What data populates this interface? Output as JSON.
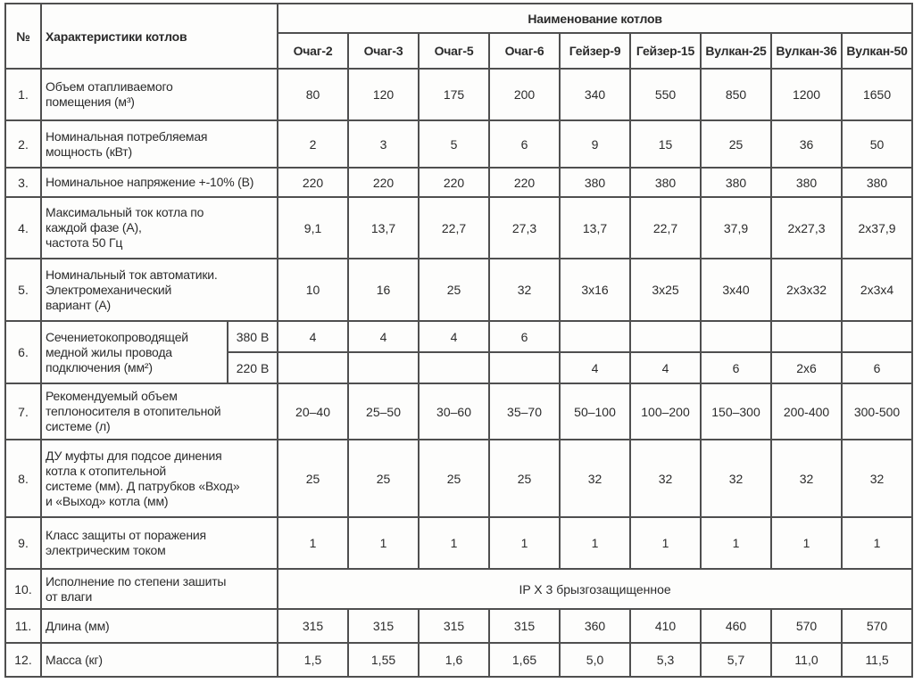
{
  "table": {
    "number_header": "№",
    "characteristics_header": "Характеристики котлов",
    "group_header": "Наименование котлов",
    "boilers": [
      "Очаг-2",
      "Очаг-3",
      "Очаг-5",
      "Очаг-6",
      "Гейзер-9",
      "Гейзер-15",
      "Вулкан-25",
      "Вулкан-36",
      "Вулкан-50"
    ],
    "rows": [
      {
        "num": "1.",
        "label": "Объем отапливаемого\nпомещения (м³)",
        "values": [
          "80",
          "120",
          "175",
          "200",
          "340",
          "550",
          "850",
          "1200",
          "1650"
        ]
      },
      {
        "num": "2.",
        "label": "Номинальная потребляемая\nмощность (кВт)",
        "values": [
          "2",
          "3",
          "5",
          "6",
          "9",
          "15",
          "25",
          "36",
          "50"
        ]
      },
      {
        "num": "3.",
        "label": "Номинальное напряжение +-10% (В)",
        "values": [
          "220",
          "220",
          "220",
          "220",
          "380",
          "380",
          "380",
          "380",
          "380"
        ]
      },
      {
        "num": "4.",
        "label": "Максимальный ток котла по\nкаждой фазе (А),\nчастота 50 Гц",
        "values": [
          "9,1",
          "13,7",
          "22,7",
          "27,3",
          "13,7",
          "22,7",
          "37,9",
          "2x27,3",
          "2x37,9"
        ]
      },
      {
        "num": "5.",
        "label": "Номинальный ток автоматики.\nЭлектромеханический\nвариант (А)",
        "values": [
          "10",
          "16",
          "25",
          "32",
          "3x16",
          "3x25",
          "3x40",
          "2x3x32",
          "2x3x4"
        ]
      },
      {
        "num": "6.",
        "label": "Сечениетокопроводящей\nмедной жилы провода\nподключения (мм²)",
        "split": [
          {
            "sublabel": "380 В",
            "values": [
              "4",
              "4",
              "4",
              "6",
              "",
              "",
              "",
              "",
              ""
            ]
          },
          {
            "sublabel": "220 В",
            "values": [
              "",
              "",
              "",
              "",
              "4",
              "4",
              "6",
              "2x6",
              "6"
            ]
          }
        ]
      },
      {
        "num": "7.",
        "label": "Рекомендуемый объем\nтеплоносителя в отопительной\nсистеме (л)",
        "values": [
          "20–40",
          "25–50",
          "30–60",
          "35–70",
          "50–100",
          "100–200",
          "150–300",
          "200-400",
          "300-500"
        ]
      },
      {
        "num": "8.",
        "label": "ДУ муфты для подсое динения\nкотла к отопительной\nсистеме (мм). Д патрубков «Вход»\nи «Выход» котла (мм)",
        "values": [
          "25",
          "25",
          "25",
          "25",
          "32",
          "32",
          "32",
          "32",
          "32"
        ]
      },
      {
        "num": "9.",
        "label": "Класс защиты от поражения\nэлектрическим током",
        "values": [
          "1",
          "1",
          "1",
          "1",
          "1",
          "1",
          "1",
          "1",
          "1"
        ]
      },
      {
        "num": "10.",
        "label": "Исполнение по степени зашиты\nот влаги",
        "merged": "IP X 3 брызгозащищенное"
      },
      {
        "num": "11.",
        "label": "Длина (мм)",
        "values": [
          "315",
          "315",
          "315",
          "315",
          "360",
          "410",
          "460",
          "570",
          "570"
        ]
      },
      {
        "num": "12.",
        "label": "Масса (кг)",
        "values": [
          "1,5",
          "1,55",
          "1,6",
          "1,65",
          "5,0",
          "5,3",
          "5,7",
          "11,0",
          "11,5"
        ]
      }
    ]
  }
}
